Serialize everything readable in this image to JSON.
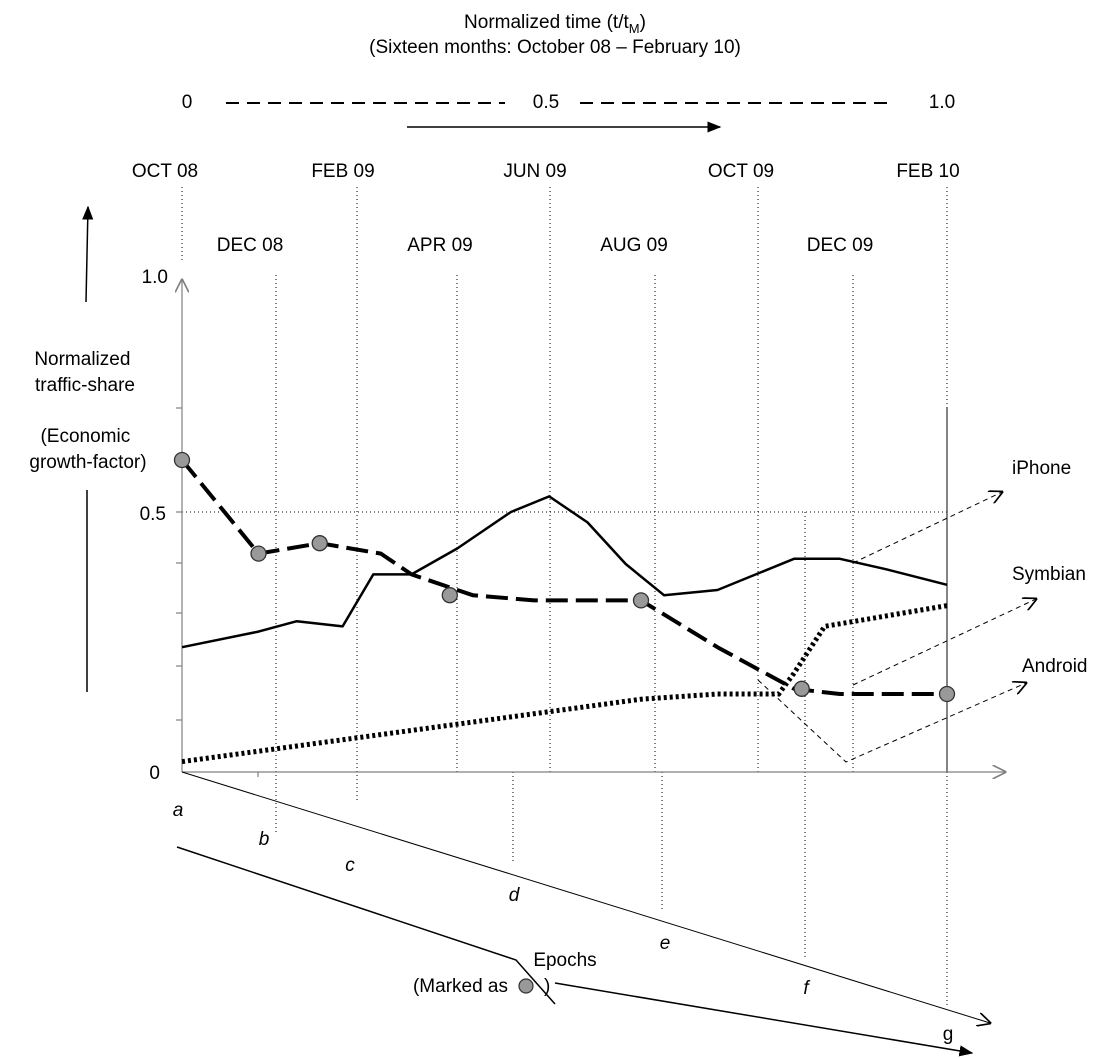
{
  "chart_data": {
    "type": "line",
    "top_axis": {
      "title": "Normalized time (",
      "title_var": "t/t",
      "title_sub": "M",
      "title_close": ")",
      "subtitle": "(Sixteen months: October 08 – February 10)",
      "ticks": [
        "0",
        "0.5",
        "1.0"
      ]
    },
    "months_major": [
      "OCT 08",
      "FEB 09",
      "JUN 09",
      "OCT 09",
      "FEB 10"
    ],
    "months_minor": [
      "DEC 08",
      "APR 09",
      "AUG 09",
      "DEC 09"
    ],
    "y_axis": {
      "label_lines": [
        "Normalized",
        "traffic-share"
      ],
      "label2_lines": [
        "(Economic",
        "growth-factor)"
      ],
      "ticks": [
        "0",
        "0.5",
        "1.0"
      ],
      "ylim": [
        0,
        1.0
      ]
    },
    "x_axis": {
      "title": "Epochs",
      "subtitle_pre": "(Marked as",
      "subtitle_post": ")",
      "epochs": [
        "a",
        "b",
        "c",
        "d",
        "e",
        "f",
        "g"
      ]
    },
    "series": [
      {
        "name": "iPhone",
        "style": "dashed-thick",
        "x": [
          0.0,
          0.1,
          0.18,
          0.26,
          0.3,
          0.38,
          0.46,
          0.53,
          0.6,
          0.7,
          0.8,
          0.86,
          1.0
        ],
        "y": [
          0.6,
          0.42,
          0.44,
          0.42,
          0.38,
          0.34,
          0.33,
          0.33,
          0.33,
          0.24,
          0.16,
          0.15,
          0.15
        ]
      },
      {
        "name": "Symbian",
        "style": "solid",
        "x": [
          0.0,
          0.1,
          0.15,
          0.21,
          0.25,
          0.3,
          0.36,
          0.43,
          0.48,
          0.53,
          0.58,
          0.63,
          0.7,
          0.75,
          0.8,
          0.86,
          0.92,
          1.0
        ],
        "y": [
          0.24,
          0.27,
          0.29,
          0.28,
          0.38,
          0.38,
          0.43,
          0.5,
          0.53,
          0.48,
          0.4,
          0.34,
          0.35,
          0.38,
          0.41,
          0.41,
          0.39,
          0.36
        ]
      },
      {
        "name": "Android",
        "style": "dotted-thick",
        "x": [
          0.0,
          0.2,
          0.4,
          0.6,
          0.7,
          0.78,
          0.8,
          0.84,
          1.0
        ],
        "y": [
          0.02,
          0.06,
          0.1,
          0.14,
          0.15,
          0.15,
          0.19,
          0.28,
          0.32
        ]
      }
    ],
    "epoch_markers": {
      "x": [
        0.0,
        0.1,
        0.18,
        0.35,
        0.6,
        0.81,
        1.0
      ],
      "y": [
        0.6,
        0.42,
        0.44,
        0.34,
        0.33,
        0.16,
        0.15
      ]
    },
    "colors": {
      "line": "#000000",
      "marker_fill": "#999999",
      "axis": "#808080"
    }
  }
}
